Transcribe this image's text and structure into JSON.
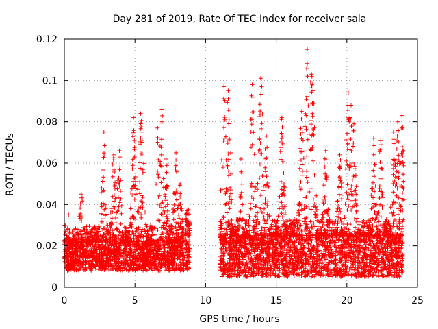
{
  "chart_data": {
    "type": "scatter",
    "title": "Day 281 of 2019, Rate Of TEC Index for receiver sala",
    "xlabel": "GPS time / hours",
    "ylabel": "ROTI / TECUs",
    "xlim": [
      0,
      25
    ],
    "ylim": [
      0,
      0.12
    ],
    "x_ticks": [
      0,
      5,
      10,
      15,
      20,
      25
    ],
    "x_tick_labels": [
      "0",
      "5",
      "10",
      "15",
      "20",
      "25"
    ],
    "y_ticks": [
      0,
      0.02,
      0.04,
      0.06,
      0.08,
      0.1,
      0.12
    ],
    "y_tick_labels": [
      "0",
      "0.02",
      "0.04",
      "0.06",
      "0.08",
      "0.1",
      "0.12"
    ],
    "grid": true,
    "marker": "+",
    "series_color": "#ff0000",
    "series": [
      {
        "name": "ROTI",
        "segments": [
          {
            "x_range": [
              0.0,
              8.5
            ],
            "baseline": [
              0.008,
              0.022
            ],
            "peaks": [
              [
                0.3,
                0.035
              ],
              [
                1.2,
                0.045
              ],
              [
                2.8,
                0.075
              ],
              [
                3.5,
                0.064
              ],
              [
                3.9,
                0.066
              ],
              [
                4.9,
                0.082
              ],
              [
                5.4,
                0.084
              ],
              [
                5.5,
                0.075
              ],
              [
                6.6,
                0.077
              ],
              [
                6.9,
                0.086
              ],
              [
                7.2,
                0.062
              ],
              [
                7.9,
                0.065
              ],
              [
                8.2,
                0.05
              ]
            ]
          },
          {
            "x_range": [
              8.6,
              8.9
            ],
            "baseline": [
              0.008,
              0.03
            ],
            "peaks": []
          },
          {
            "x_range": [
              11.0,
              24.0
            ],
            "baseline": [
              0.005,
              0.025
            ],
            "peaks": [
              [
                11.3,
                0.097
              ],
              [
                11.6,
                0.095
              ],
              [
                12.5,
                0.062
              ],
              [
                13.3,
                0.098
              ],
              [
                13.9,
                0.101
              ],
              [
                14.3,
                0.073
              ],
              [
                15.4,
                0.082
              ],
              [
                16.8,
                0.085
              ],
              [
                17.2,
                0.115
              ],
              [
                17.5,
                0.103
              ],
              [
                17.6,
                0.095
              ],
              [
                18.5,
                0.066
              ],
              [
                19.5,
                0.064
              ],
              [
                20.1,
                0.094
              ],
              [
                20.3,
                0.088
              ],
              [
                20.5,
                0.079
              ],
              [
                21.9,
                0.072
              ],
              [
                22.4,
                0.071
              ],
              [
                23.3,
                0.075
              ],
              [
                23.6,
                0.08
              ],
              [
                23.9,
                0.083
              ],
              [
                24.0,
                0.066
              ]
            ]
          }
        ]
      }
    ]
  }
}
